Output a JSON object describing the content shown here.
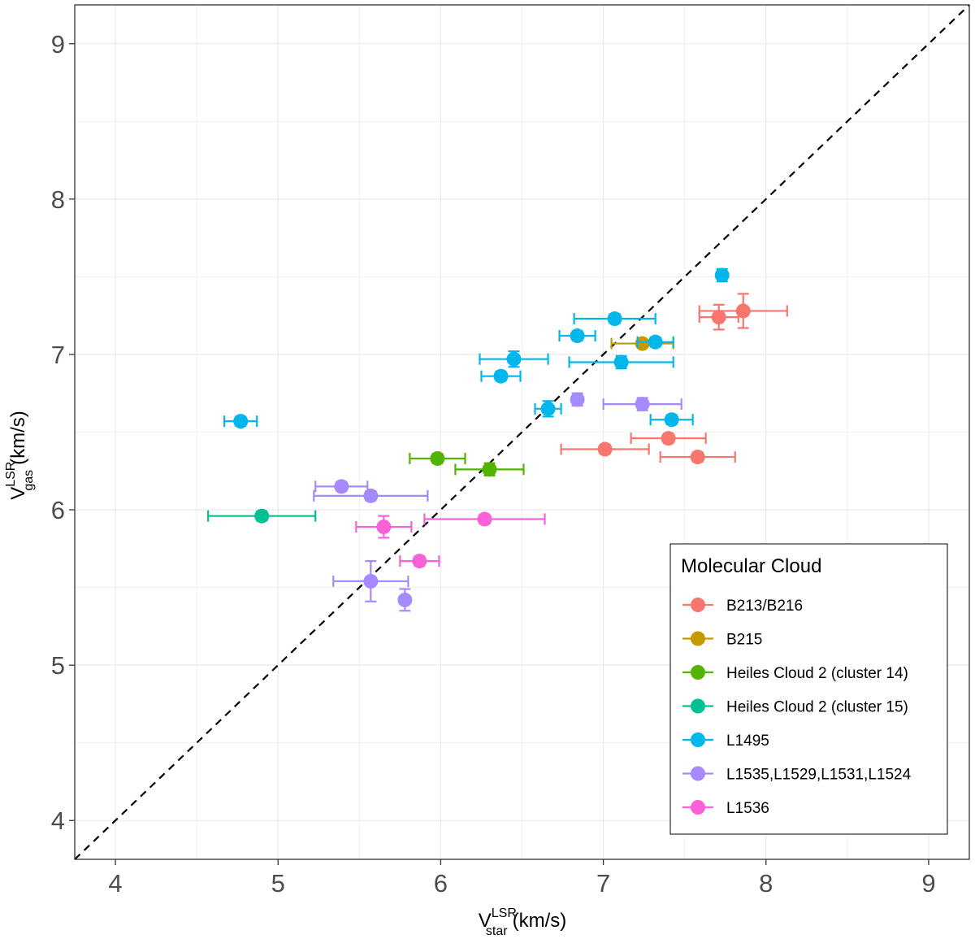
{
  "chart_data": {
    "type": "scatter",
    "title": "",
    "xlabel": {
      "main": "V",
      "sup": "LSR",
      "sub": "star",
      "unit": "(km/s)"
    },
    "ylabel": {
      "main": "V",
      "sup": "LSR",
      "sub": "gas",
      "unit": "(km/s)"
    },
    "xlim": [
      3.75,
      9.25
    ],
    "ylim": [
      3.75,
      9.25
    ],
    "x_ticks": [
      4,
      5,
      6,
      7,
      8,
      9
    ],
    "y_ticks": [
      4,
      5,
      6,
      7,
      8,
      9
    ],
    "x_tick_labels": [
      "4",
      "5",
      "6",
      "7",
      "8",
      "9"
    ],
    "y_tick_labels": [
      "4",
      "5",
      "6",
      "7",
      "8",
      "9"
    ],
    "grid": true,
    "reference_line": {
      "style": "dashed",
      "slope": 1,
      "intercept": 0
    },
    "legend": {
      "title": "Molecular Cloud",
      "position": "bottom-right"
    },
    "series": [
      {
        "name": "B213/B216",
        "color": "#F8766D",
        "points": [
          {
            "x": 7.71,
            "y": 7.24,
            "xerr": 0.12,
            "yerr": 0.08
          },
          {
            "x": 7.86,
            "y": 7.28,
            "xerr": 0.27,
            "yerr": 0.11
          },
          {
            "x": 7.4,
            "y": 6.46,
            "xerr": 0.23,
            "yerr": 0.03
          },
          {
            "x": 7.01,
            "y": 6.39,
            "xerr": 0.27,
            "yerr": 0.03
          },
          {
            "x": 7.58,
            "y": 6.34,
            "xerr": 0.23,
            "yerr": 0.03
          }
        ]
      },
      {
        "name": "B215",
        "color": "#C49A00",
        "points": [
          {
            "x": 7.24,
            "y": 7.07,
            "xerr": 0.19,
            "yerr": 0.02
          }
        ]
      },
      {
        "name": "Heiles Cloud 2 (cluster 14)",
        "color": "#53B400",
        "points": [
          {
            "x": 5.98,
            "y": 6.33,
            "xerr": 0.17,
            "yerr": 0.03
          },
          {
            "x": 6.3,
            "y": 6.26,
            "xerr": 0.21,
            "yerr": 0.04
          }
        ]
      },
      {
        "name": "Heiles Cloud 2 (cluster 15)",
        "color": "#00C094",
        "points": [
          {
            "x": 4.9,
            "y": 5.96,
            "xerr": 0.33,
            "yerr": 0.03
          }
        ]
      },
      {
        "name": "L1495",
        "color": "#00B6EB",
        "points": [
          {
            "x": 7.73,
            "y": 7.51,
            "xerr": 0.0,
            "yerr": 0.04
          },
          {
            "x": 7.07,
            "y": 7.23,
            "xerr": 0.25,
            "yerr": 0.03
          },
          {
            "x": 6.84,
            "y": 7.12,
            "xerr": 0.11,
            "yerr": 0.03
          },
          {
            "x": 7.32,
            "y": 7.08,
            "xerr": 0.11,
            "yerr": 0.03
          },
          {
            "x": 6.45,
            "y": 6.97,
            "xerr": 0.21,
            "yerr": 0.05
          },
          {
            "x": 7.11,
            "y": 6.95,
            "xerr": 0.32,
            "yerr": 0.04
          },
          {
            "x": 6.37,
            "y": 6.86,
            "xerr": 0.12,
            "yerr": 0.03
          },
          {
            "x": 6.66,
            "y": 6.65,
            "xerr": 0.08,
            "yerr": 0.05
          },
          {
            "x": 7.42,
            "y": 6.58,
            "xerr": 0.13,
            "yerr": 0.03
          },
          {
            "x": 4.77,
            "y": 6.57,
            "xerr": 0.1,
            "yerr": 0.03
          }
        ]
      },
      {
        "name": "L1535,L1529,L1531,L1524",
        "color": "#A58AFF",
        "points": [
          {
            "x": 6.84,
            "y": 6.71,
            "xerr": 0.0,
            "yerr": 0.04
          },
          {
            "x": 7.24,
            "y": 6.68,
            "xerr": 0.24,
            "yerr": 0.04
          },
          {
            "x": 5.39,
            "y": 6.15,
            "xerr": 0.16,
            "yerr": 0.03
          },
          {
            "x": 5.57,
            "y": 6.09,
            "xerr": 0.35,
            "yerr": 0.03
          },
          {
            "x": 5.57,
            "y": 5.54,
            "xerr": 0.23,
            "yerr": 0.13
          },
          {
            "x": 5.78,
            "y": 5.42,
            "xerr": 0.0,
            "yerr": 0.07
          }
        ]
      },
      {
        "name": "L1536",
        "color": "#FB61D7",
        "points": [
          {
            "x": 6.27,
            "y": 5.94,
            "xerr": 0.37,
            "yerr": 0.03
          },
          {
            "x": 5.65,
            "y": 5.89,
            "xerr": 0.17,
            "yerr": 0.07
          },
          {
            "x": 5.87,
            "y": 5.67,
            "xerr": 0.12,
            "yerr": 0.03
          }
        ]
      }
    ]
  }
}
